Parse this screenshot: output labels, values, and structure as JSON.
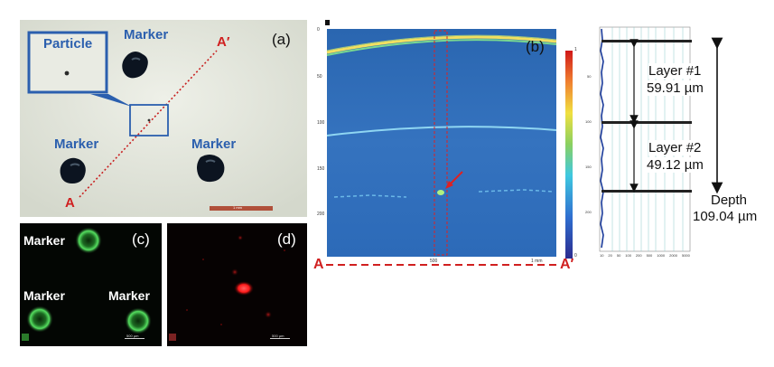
{
  "panel_a": {
    "label": "(a)",
    "particle": "Particle",
    "markers": [
      "Marker",
      "Marker",
      "Marker"
    ],
    "line_start": "A",
    "line_end": "A′",
    "scalebar": "1 mm"
  },
  "panel_b": {
    "label": "(b)",
    "line_start": "A",
    "line_end": "A′",
    "y_ticks": [
      "0",
      "50",
      "100",
      "150",
      "200"
    ],
    "x_ticks": [
      "500",
      "1 mm"
    ],
    "colorbar_top": "1",
    "colorbar_bottom": "0"
  },
  "panel_profile": {
    "layer1_title": "Layer #1",
    "layer1_value": "59.91 µm",
    "layer2_title": "Layer #2",
    "layer2_value": "49.12 µm",
    "depth_title": "Depth",
    "depth_value": "109.04 µm",
    "y_ticks": [
      "50",
      "100",
      "150",
      "200"
    ],
    "x_ticks": [
      "10",
      "20",
      "50",
      "100",
      "200",
      "500",
      "1000",
      "2000",
      "5000"
    ]
  },
  "panel_c": {
    "label": "(c)",
    "markers": [
      "Marker",
      "Marker",
      "Marker"
    ],
    "scalebar": "500 µm"
  },
  "panel_d": {
    "label": "(d)",
    "scalebar": "500 µm"
  },
  "colors": {
    "label_blue": "#2b5fae",
    "label_red": "#d02020",
    "oct_background": "#2f6fb8",
    "fluorescence_green": "#3ec84a",
    "fluorescence_red": "#ff2a2a"
  }
}
